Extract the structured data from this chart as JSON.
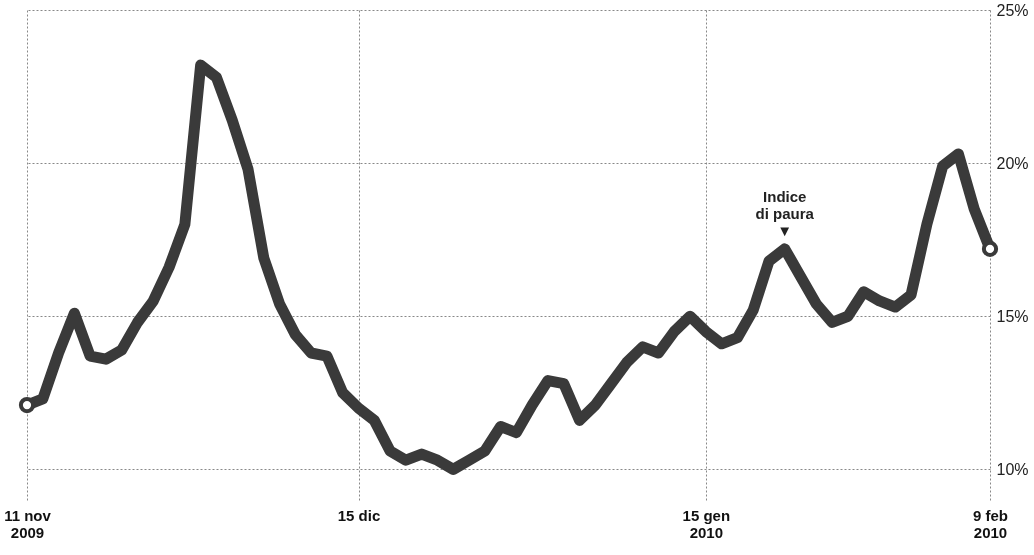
{
  "chart_data": {
    "type": "line",
    "categories": [
      "11 nov\n2009",
      null,
      null,
      null,
      null,
      null,
      null,
      null,
      null,
      null,
      null,
      null,
      null,
      null,
      null,
      null,
      null,
      null,
      null,
      null,
      null,
      "15 dic",
      null,
      null,
      null,
      null,
      null,
      null,
      null,
      null,
      null,
      null,
      null,
      null,
      null,
      null,
      null,
      null,
      null,
      null,
      null,
      null,
      null,
      "15 gen\n2010",
      null,
      null,
      null,
      null,
      null,
      null,
      null,
      null,
      null,
      null,
      null,
      null,
      null,
      null,
      null,
      null,
      null,
      "9 feb\n2010"
    ],
    "series": [
      {
        "color": "#3a3a3a",
        "values": [
          12.1,
          12.3,
          13.8,
          15.1,
          13.7,
          13.6,
          13.9,
          14.8,
          15.5,
          16.6,
          18.0,
          23.2,
          22.8,
          21.4,
          19.8,
          16.9,
          15.4,
          14.4,
          13.8,
          13.7,
          12.5,
          12.0,
          11.6,
          10.6,
          10.3,
          10.5,
          10.3,
          10.0,
          10.3,
          10.6,
          11.4,
          11.2,
          12.1,
          12.9,
          12.8,
          11.6,
          12.1,
          12.8,
          13.5,
          14.0,
          13.8,
          14.5,
          15.0,
          14.5,
          14.1,
          14.3,
          15.2,
          16.8,
          17.2,
          16.3,
          15.4,
          14.8,
          15.0,
          15.8,
          15.5,
          15.3,
          15.7,
          18.0,
          19.9,
          20.3,
          18.5,
          17.2
        ]
      }
    ],
    "ylim": [
      9,
      25
    ],
    "yticks": [
      {
        "value": 10,
        "label": "10%"
      },
      {
        "value": 15,
        "label": "15%"
      },
      {
        "value": 20,
        "label": "20%"
      },
      {
        "value": 25,
        "label": "25%"
      }
    ],
    "grid": true,
    "line_style": "solid",
    "annotations": [
      {
        "text": "Indice\ndi paura\n▼",
        "y": 17.2
      }
    ]
  }
}
